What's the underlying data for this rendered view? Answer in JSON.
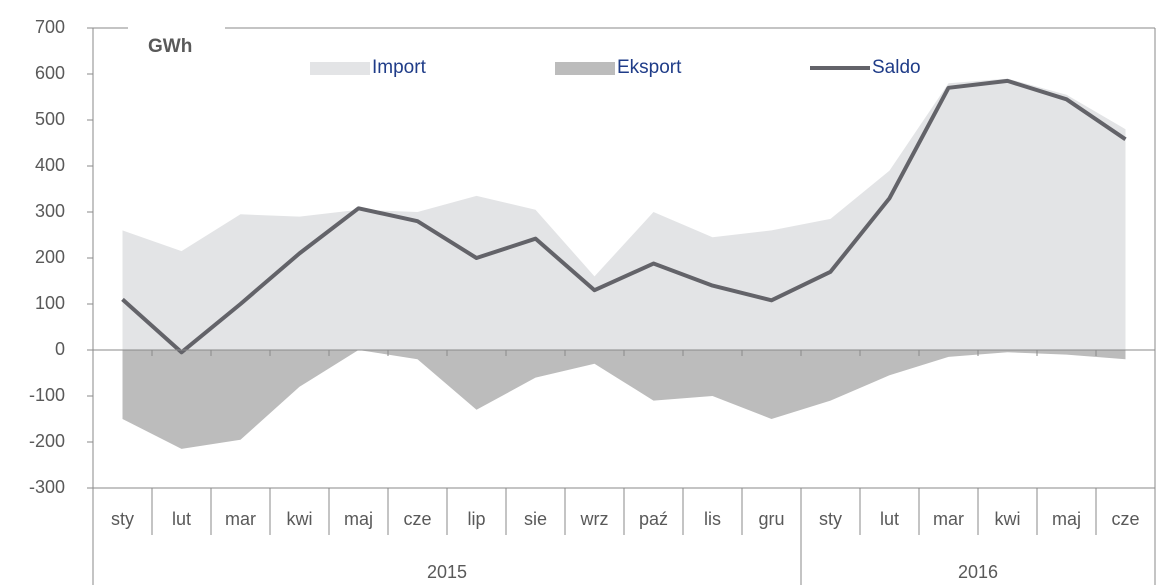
{
  "chart_data": {
    "type": "area",
    "annotation": "GWh",
    "categories": [
      "sty",
      "lut",
      "mar",
      "kwi",
      "maj",
      "cze",
      "lip",
      "sie",
      "wrz",
      "paź",
      "lis",
      "gru",
      "sty",
      "lut",
      "mar",
      "kwi",
      "maj",
      "cze"
    ],
    "groups": [
      {
        "label": "2015",
        "size": 12
      },
      {
        "label": "2016",
        "size": 6
      }
    ],
    "series": [
      {
        "name": "Import",
        "type": "area",
        "color": "#e3e4e6",
        "values": [
          260,
          215,
          295,
          290,
          305,
          300,
          335,
          305,
          160,
          300,
          245,
          260,
          285,
          390,
          580,
          590,
          555,
          480
        ]
      },
      {
        "name": "Eksport",
        "type": "area",
        "color": "#bcbcbc",
        "values": [
          -150,
          -215,
          -195,
          -80,
          0,
          -20,
          -130,
          -60,
          -30,
          -110,
          -100,
          -150,
          -110,
          -55,
          -15,
          -5,
          -10,
          -20
        ]
      },
      {
        "name": "Saldo",
        "type": "line",
        "color": "#636369",
        "values": [
          110,
          -5,
          100,
          210,
          308,
          280,
          200,
          242,
          130,
          188,
          140,
          108,
          170,
          330,
          570,
          585,
          545,
          458
        ]
      }
    ],
    "ylim": [
      -300,
      700
    ],
    "yticks": [
      -300,
      -200,
      -100,
      0,
      100,
      200,
      300,
      400,
      500,
      600,
      700
    ],
    "legend": "top",
    "grid": false
  }
}
